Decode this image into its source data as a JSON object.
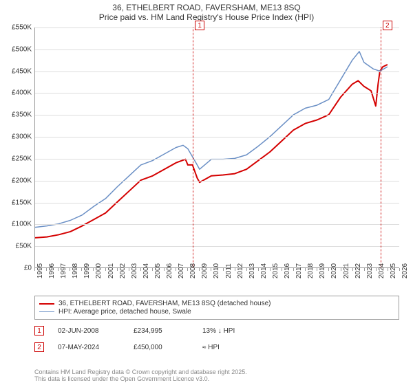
{
  "title1": "36, ETHELBERT ROAD, FAVERSHAM, ME13 8SQ",
  "title2": "Price paid vs. HM Land Registry's House Price Index (HPI)",
  "chart": {
    "type": "line",
    "x_years": [
      1995,
      1996,
      1997,
      1998,
      1999,
      2000,
      2001,
      2002,
      2003,
      2004,
      2005,
      2006,
      2007,
      2008,
      2009,
      2010,
      2011,
      2012,
      2013,
      2014,
      2015,
      2016,
      2017,
      2018,
      2019,
      2020,
      2021,
      2022,
      2023,
      2024,
      2025,
      2026
    ],
    "ylim": [
      0,
      550000
    ],
    "y_tick_step": 50000,
    "y_tick_labels": [
      "£0",
      "£50K",
      "£100K",
      "£150K",
      "£200K",
      "£250K",
      "£300K",
      "£350K",
      "£400K",
      "£450K",
      "£500K",
      "£550K"
    ],
    "grid_color": "#dddddd",
    "axis_color": "#999999",
    "background_color": "#ffffff",
    "series": [
      {
        "name": "price-paid",
        "label": "36, ETHELBERT ROAD, FAVERSHAM, ME13 8SQ (detached house)",
        "color": "#d40000",
        "width": 2,
        "points": [
          [
            1995,
            68000
          ],
          [
            1996,
            70000
          ],
          [
            1997,
            75000
          ],
          [
            1998,
            82000
          ],
          [
            1999,
            95000
          ],
          [
            2000,
            110000
          ],
          [
            2001,
            125000
          ],
          [
            2002,
            150000
          ],
          [
            2003,
            175000
          ],
          [
            2004,
            200000
          ],
          [
            2005,
            210000
          ],
          [
            2006,
            225000
          ],
          [
            2007,
            240000
          ],
          [
            2007.8,
            248000
          ],
          [
            2008,
            234995
          ],
          [
            2008.4,
            234995
          ],
          [
            2008.8,
            205000
          ],
          [
            2009,
            195000
          ],
          [
            2010,
            210000
          ],
          [
            2011,
            212000
          ],
          [
            2012,
            215000
          ],
          [
            2013,
            225000
          ],
          [
            2014,
            245000
          ],
          [
            2015,
            265000
          ],
          [
            2016,
            290000
          ],
          [
            2017,
            315000
          ],
          [
            2018,
            330000
          ],
          [
            2019,
            338000
          ],
          [
            2020,
            350000
          ],
          [
            2021,
            390000
          ],
          [
            2022,
            420000
          ],
          [
            2022.5,
            428000
          ],
          [
            2023,
            415000
          ],
          [
            2023.6,
            405000
          ],
          [
            2024,
            370000
          ],
          [
            2024.2,
            420000
          ],
          [
            2024.35,
            450000
          ],
          [
            2024.6,
            460000
          ],
          [
            2025,
            465000
          ]
        ]
      },
      {
        "name": "hpi",
        "label": "HPI: Average price, detached house, Swale",
        "color": "#6a8fc5",
        "width": 1.5,
        "points": [
          [
            1995,
            92000
          ],
          [
            1996,
            95000
          ],
          [
            1997,
            100000
          ],
          [
            1998,
            108000
          ],
          [
            1999,
            120000
          ],
          [
            2000,
            140000
          ],
          [
            2001,
            158000
          ],
          [
            2002,
            185000
          ],
          [
            2003,
            210000
          ],
          [
            2004,
            235000
          ],
          [
            2005,
            245000
          ],
          [
            2006,
            260000
          ],
          [
            2007,
            275000
          ],
          [
            2007.6,
            280000
          ],
          [
            2008,
            272000
          ],
          [
            2008.8,
            235000
          ],
          [
            2009,
            225000
          ],
          [
            2010,
            248000
          ],
          [
            2011,
            248000
          ],
          [
            2012,
            250000
          ],
          [
            2013,
            258000
          ],
          [
            2014,
            278000
          ],
          [
            2015,
            300000
          ],
          [
            2016,
            325000
          ],
          [
            2017,
            350000
          ],
          [
            2018,
            365000
          ],
          [
            2019,
            372000
          ],
          [
            2020,
            385000
          ],
          [
            2021,
            430000
          ],
          [
            2022,
            475000
          ],
          [
            2022.6,
            495000
          ],
          [
            2023,
            470000
          ],
          [
            2023.8,
            455000
          ],
          [
            2024.35,
            450000
          ],
          [
            2025,
            460000
          ]
        ]
      }
    ],
    "markers": [
      {
        "n": "1",
        "x": 2008.4
      },
      {
        "n": "2",
        "x": 2024.35
      }
    ]
  },
  "legend": {
    "rows": [
      {
        "color": "#d40000",
        "width": 2,
        "label": "36, ETHELBERT ROAD, FAVERSHAM, ME13 8SQ (detached house)"
      },
      {
        "color": "#6a8fc5",
        "width": 1.5,
        "label": "HPI: Average price, detached house, Swale"
      }
    ]
  },
  "events": [
    {
      "n": "1",
      "date": "02-JUN-2008",
      "price": "£234,995",
      "delta": "13% ↓ HPI"
    },
    {
      "n": "2",
      "date": "07-MAY-2024",
      "price": "£450,000",
      "delta": "≈ HPI"
    }
  ],
  "footer": {
    "line1": "Contains HM Land Registry data © Crown copyright and database right 2025.",
    "line2": "This data is licensed under the Open Government Licence v3.0."
  }
}
